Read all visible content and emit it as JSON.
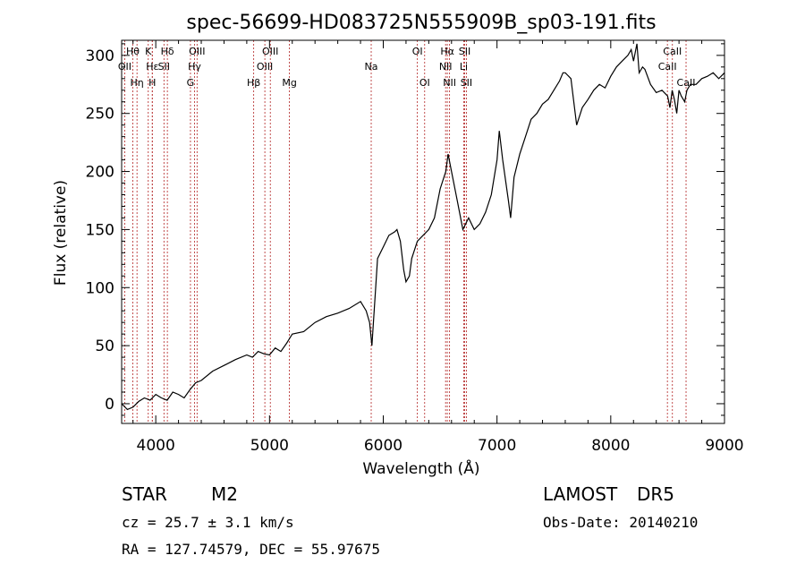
{
  "chart_data": {
    "type": "line",
    "title": "spec-56699-HD083725N555909B_sp03-191.fits",
    "xlabel": "Wavelength (Å)",
    "ylabel": "Flux (relative)",
    "xlim": [
      3700,
      9000
    ],
    "ylim": [
      -17,
      313
    ],
    "xticks": [
      4000,
      5000,
      6000,
      7000,
      8000,
      9000
    ],
    "yticks": [
      0,
      50,
      100,
      150,
      200,
      250,
      300
    ],
    "grid": false,
    "series": [
      {
        "x": [
          3700,
          3750,
          3800,
          3850,
          3900,
          3950,
          4000,
          4050,
          4100,
          4150,
          4200,
          4250,
          4300,
          4350,
          4400,
          4500,
          4600,
          4700,
          4800,
          4850,
          4900,
          4950,
          5000,
          5050,
          5100,
          5150,
          5200,
          5300,
          5400,
          5500,
          5600,
          5700,
          5800,
          5850,
          5880,
          5900,
          5930,
          5950,
          6000,
          6050,
          6100,
          6120,
          6150,
          6180,
          6200,
          6230,
          6250,
          6300,
          6350,
          6400,
          6450,
          6500,
          6550,
          6570,
          6600,
          6650,
          6700,
          6750,
          6800,
          6850,
          6900,
          6950,
          7000,
          7020,
          7050,
          7100,
          7120,
          7150,
          7200,
          7250,
          7300,
          7350,
          7400,
          7450,
          7500,
          7550,
          7580,
          7600,
          7650,
          7700,
          7750,
          7800,
          7850,
          7900,
          7950,
          8000,
          8050,
          8100,
          8150,
          8180,
          8200,
          8230,
          8250,
          8280,
          8300,
          8350,
          8400,
          8450,
          8500,
          8520,
          8540,
          8560,
          8580,
          8600,
          8620,
          8650,
          8670,
          8700,
          8750,
          8800,
          8850,
          8900,
          8950,
          9000
        ],
        "y": [
          0,
          -5,
          -3,
          2,
          5,
          3,
          8,
          5,
          3,
          10,
          8,
          5,
          12,
          18,
          20,
          28,
          33,
          38,
          42,
          40,
          45,
          43,
          42,
          48,
          45,
          52,
          60,
          62,
          70,
          75,
          78,
          82,
          88,
          80,
          70,
          50,
          95,
          125,
          135,
          145,
          148,
          150,
          140,
          115,
          105,
          110,
          125,
          140,
          145,
          150,
          160,
          185,
          200,
          215,
          200,
          175,
          150,
          160,
          150,
          155,
          165,
          180,
          210,
          235,
          210,
          175,
          160,
          195,
          215,
          230,
          245,
          250,
          258,
          262,
          270,
          278,
          285,
          285,
          280,
          240,
          255,
          262,
          270,
          275,
          272,
          282,
          290,
          295,
          300,
          305,
          295,
          310,
          285,
          290,
          288,
          275,
          268,
          270,
          265,
          255,
          270,
          262,
          250,
          270,
          265,
          260,
          270,
          275,
          275,
          280,
          282,
          285,
          280,
          285
        ]
      }
    ],
    "emission_lines": [
      {
        "name": "OII",
        "x": 3727,
        "row": 1
      },
      {
        "name": "Hθ",
        "x": 3798,
        "row": 0
      },
      {
        "name": "Hη",
        "x": 3835,
        "row": 2
      },
      {
        "name": "K",
        "x": 3934,
        "row": 0
      },
      {
        "name": "Hε",
        "x": 3970,
        "row": 1
      },
      {
        "name": "H",
        "x": 3969,
        "row": 2
      },
      {
        "name": "Hδ",
        "x": 4102,
        "row": 0
      },
      {
        "name": "SII",
        "x": 4072,
        "row": 1
      },
      {
        "name": "OIII",
        "x": 4363,
        "row": 0
      },
      {
        "name": "Hγ",
        "x": 4341,
        "row": 1
      },
      {
        "name": "G",
        "x": 4305,
        "row": 2
      },
      {
        "name": "Hβ",
        "x": 4861,
        "row": 2
      },
      {
        "name": "OIII",
        "x": 4959,
        "row": 1
      },
      {
        "name": "OIII",
        "x": 5007,
        "row": 0
      },
      {
        "name": "Mg",
        "x": 5175,
        "row": 2
      },
      {
        "name": "Na",
        "x": 5894,
        "row": 1
      },
      {
        "name": "OI",
        "x": 6300,
        "row": 0
      },
      {
        "name": "OI",
        "x": 6364,
        "row": 2
      },
      {
        "name": "Hα",
        "x": 6563,
        "row": 0
      },
      {
        "name": "NII",
        "x": 6548,
        "row": 1
      },
      {
        "name": "NII",
        "x": 6583,
        "row": 2
      },
      {
        "name": "SII",
        "x": 6716,
        "row": 0
      },
      {
        "name": "Li",
        "x": 6708,
        "row": 1
      },
      {
        "name": "SII",
        "x": 6731,
        "row": 2
      },
      {
        "name": "CaII",
        "x": 8542,
        "row": 0
      },
      {
        "name": "CaII",
        "x": 8498,
        "row": 1
      },
      {
        "name": "CaII",
        "x": 8662,
        "row": 2
      }
    ]
  },
  "info": {
    "object_class": "STAR",
    "subclass": "M2",
    "survey": "LAMOST",
    "release": "DR5",
    "cz": "cz = 25.7 ± 3.1 km/s",
    "obs_date": "Obs-Date: 20140210",
    "coords": "RA = 127.74579, DEC =  55.97675"
  }
}
